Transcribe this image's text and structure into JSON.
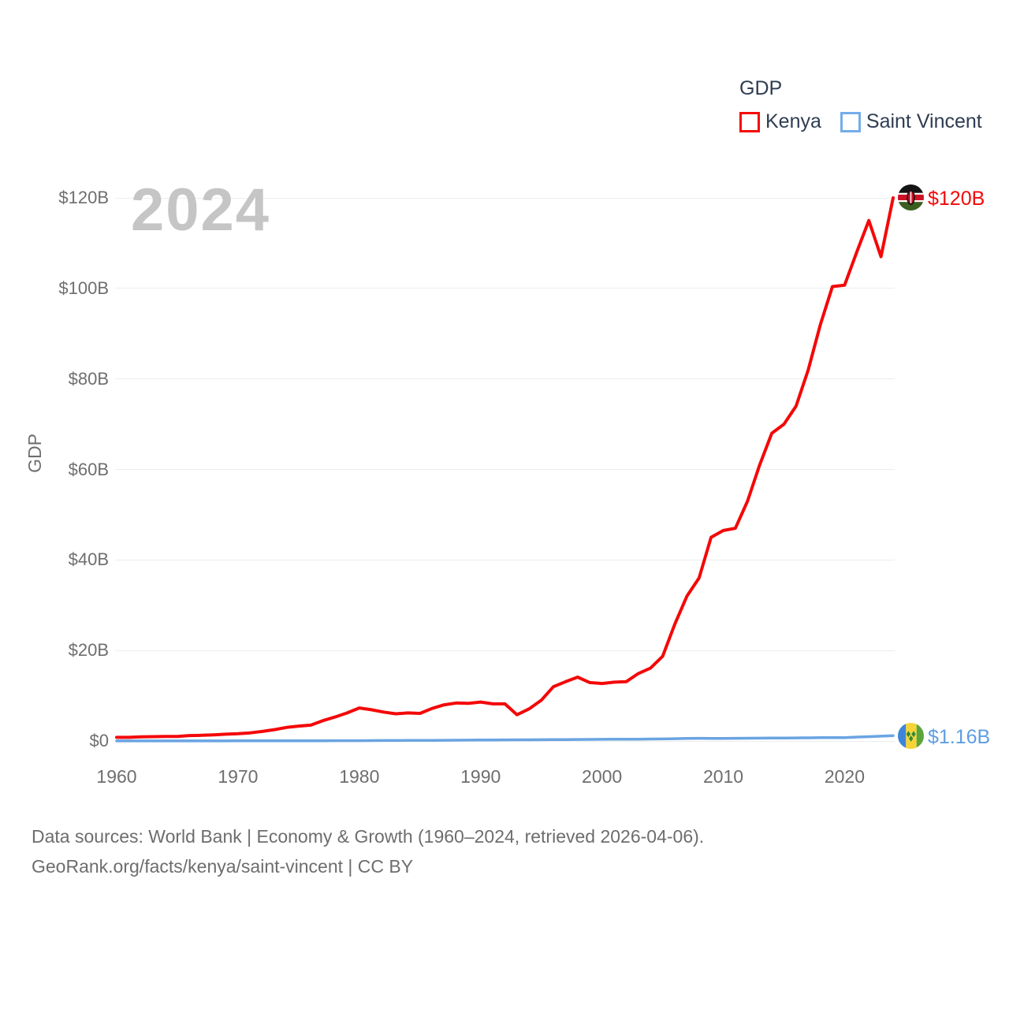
{
  "watermark": "2024",
  "legend": {
    "title": "GDP",
    "items": [
      {
        "label": "Kenya",
        "color": "#f40808"
      },
      {
        "label": "Saint Vincent",
        "color": "#74ade8"
      }
    ]
  },
  "end_labels": {
    "kenya": {
      "text": "$120B",
      "icon": "kenya-flag-icon"
    },
    "saint_vincent": {
      "text": "$1.16B",
      "icon": "saint-vincent-flag-icon"
    }
  },
  "footer": {
    "line1": "Data sources: World Bank | Economy & Growth (1960–2024, retrieved 2026-04-06).",
    "line2": "GeoRank.org/facts/kenya/saint-vincent | CC BY"
  },
  "colors": {
    "kenya_red": "#f40808",
    "saint_vincent_blue": "#6aa4e2",
    "saint_vincent_label_blue": "#5f9ee2",
    "legend_blue_swatch": "#74ade8",
    "legend_text": "#2e3d52",
    "axis_text": "#6e6e6e",
    "watermark_gray": "#c5c5c5",
    "gridline": "#ededed"
  },
  "chart_data": {
    "type": "line",
    "title": "GDP",
    "y_axis_title": "GDP",
    "y_unit": "billions of current US$",
    "xlim": [
      1960,
      2024
    ],
    "ylim": [
      0,
      120
    ],
    "grid": "horizontal",
    "legend_position": "top-right",
    "y_ticks": [
      {
        "value": 0,
        "label": "$0"
      },
      {
        "value": 20,
        "label": "$20B"
      },
      {
        "value": 40,
        "label": "$40B"
      },
      {
        "value": 60,
        "label": "$60B"
      },
      {
        "value": 80,
        "label": "$80B"
      },
      {
        "value": 100,
        "label": "$100B"
      },
      {
        "value": 120,
        "label": "$120B"
      }
    ],
    "x_ticks": [
      {
        "value": 1960,
        "label": "1960"
      },
      {
        "value": 1970,
        "label": "1970"
      },
      {
        "value": 1980,
        "label": "1980"
      },
      {
        "value": 1990,
        "label": "1990"
      },
      {
        "value": 2000,
        "label": "2000"
      },
      {
        "value": 2010,
        "label": "2010"
      },
      {
        "value": 2020,
        "label": "2020"
      }
    ],
    "x": [
      1960,
      1961,
      1962,
      1963,
      1964,
      1965,
      1966,
      1967,
      1968,
      1969,
      1970,
      1971,
      1972,
      1973,
      1974,
      1975,
      1976,
      1977,
      1978,
      1979,
      1980,
      1981,
      1982,
      1983,
      1984,
      1985,
      1986,
      1987,
      1988,
      1989,
      1990,
      1991,
      1992,
      1993,
      1994,
      1995,
      1996,
      1997,
      1998,
      1999,
      2000,
      2001,
      2002,
      2003,
      2004,
      2005,
      2006,
      2007,
      2008,
      2009,
      2010,
      2011,
      2012,
      2013,
      2014,
      2015,
      2016,
      2017,
      2018,
      2019,
      2020,
      2021,
      2022,
      2023,
      2024
    ],
    "series": [
      {
        "name": "Kenya",
        "color": "#f40808",
        "stroke_width": 4,
        "end_value_label": "$120B",
        "values": [
          0.8,
          0.8,
          0.9,
          0.95,
          1.0,
          1.0,
          1.2,
          1.25,
          1.35,
          1.5,
          1.6,
          1.8,
          2.1,
          2.5,
          3.0,
          3.3,
          3.5,
          4.5,
          5.3,
          6.2,
          7.3,
          6.9,
          6.4,
          6.0,
          6.2,
          6.1,
          7.2,
          8.0,
          8.4,
          8.3,
          8.6,
          8.2,
          8.2,
          5.8,
          7.1,
          9.0,
          12.0,
          13.1,
          14.1,
          12.9,
          12.7,
          13.0,
          13.1,
          14.9,
          16.1,
          18.7,
          25.8,
          32.0,
          36.0,
          45.0,
          46.5,
          47.0,
          53.0,
          61.0,
          68.0,
          70.0,
          74.0,
          82.0,
          92.0,
          100.4,
          100.7,
          108.0,
          115.0,
          107.0,
          120.0
        ]
      },
      {
        "name": "Saint Vincent",
        "color": "#6aa4e2",
        "stroke_width": 3.5,
        "end_value_label": "$1.16B",
        "values": [
          0.013,
          0.014,
          0.015,
          0.016,
          0.017,
          0.018,
          0.02,
          0.021,
          0.022,
          0.024,
          0.027,
          0.03,
          0.032,
          0.035,
          0.04,
          0.045,
          0.05,
          0.055,
          0.065,
          0.07,
          0.078,
          0.09,
          0.1,
          0.107,
          0.117,
          0.127,
          0.14,
          0.157,
          0.18,
          0.2,
          0.22,
          0.235,
          0.25,
          0.26,
          0.265,
          0.28,
          0.29,
          0.305,
          0.325,
          0.34,
          0.364,
          0.378,
          0.39,
          0.405,
          0.44,
          0.46,
          0.51,
          0.56,
          0.585,
          0.57,
          0.58,
          0.59,
          0.61,
          0.62,
          0.645,
          0.66,
          0.68,
          0.7,
          0.73,
          0.76,
          0.74,
          0.87,
          0.95,
          1.07,
          1.16
        ]
      }
    ]
  }
}
